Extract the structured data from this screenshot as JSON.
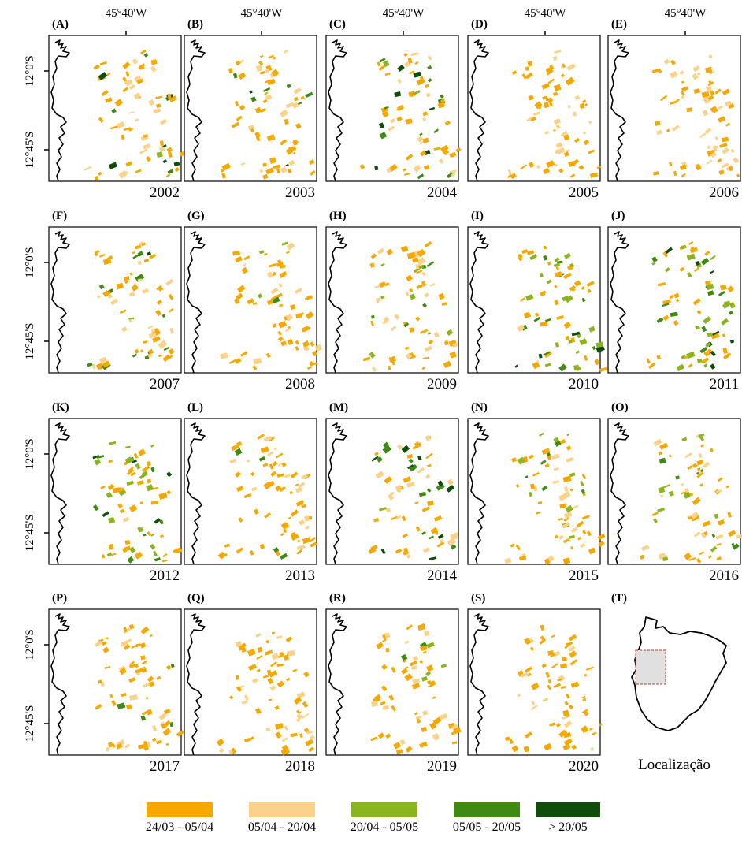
{
  "x_axis_label": "45°40'W",
  "y_axis_labels": [
    "12°0'S",
    "12°45'S"
  ],
  "colors": {
    "c1": "#f5a800",
    "c2": "#fcd28a",
    "c3": "#8bb51e",
    "c4": "#3f8a13",
    "c5": "#0f4d0a"
  },
  "panels": [
    {
      "label": "(A)",
      "year": "2002",
      "dominant": [
        "c1",
        "c2",
        "c4",
        "c5",
        "c3"
      ]
    },
    {
      "label": "(B)",
      "year": "2003",
      "dominant": [
        "c1",
        "c2",
        "c4",
        "c5",
        "c3"
      ]
    },
    {
      "label": "(C)",
      "year": "2004",
      "dominant": [
        "c1",
        "c2",
        "c4",
        "c5",
        "c3"
      ]
    },
    {
      "label": "(D)",
      "year": "2005",
      "dominant": [
        "c1",
        "c2",
        "c1",
        "c2",
        "c1"
      ]
    },
    {
      "label": "(E)",
      "year": "2006",
      "dominant": [
        "c1",
        "c2",
        "c2",
        "c1",
        "c2"
      ]
    },
    {
      "label": "(F)",
      "year": "2007",
      "dominant": [
        "c1",
        "c2",
        "c4",
        "c5",
        "c3"
      ]
    },
    {
      "label": "(G)",
      "year": "2008",
      "dominant": [
        "c1",
        "c2",
        "c1",
        "c3",
        "c4"
      ]
    },
    {
      "label": "(H)",
      "year": "2009",
      "dominant": [
        "c1",
        "c2",
        "c3",
        "c4",
        "c5"
      ]
    },
    {
      "label": "(I)",
      "year": "2010",
      "dominant": [
        "c1",
        "c3",
        "c4",
        "c5",
        "c2"
      ]
    },
    {
      "label": "(J)",
      "year": "2011",
      "dominant": [
        "c1",
        "c3",
        "c4",
        "c5",
        "c2"
      ]
    },
    {
      "label": "(K)",
      "year": "2012",
      "dominant": [
        "c1",
        "c3",
        "c4",
        "c5",
        "c2"
      ]
    },
    {
      "label": "(L)",
      "year": "2013",
      "dominant": [
        "c1",
        "c2",
        "c1",
        "c4",
        "c1"
      ]
    },
    {
      "label": "(M)",
      "year": "2014",
      "dominant": [
        "c1",
        "c2",
        "c4",
        "c5",
        "c3"
      ]
    },
    {
      "label": "(N)",
      "year": "2015",
      "dominant": [
        "c1",
        "c2",
        "c3",
        "c4",
        "c1"
      ]
    },
    {
      "label": "(O)",
      "year": "2016",
      "dominant": [
        "c1",
        "c2",
        "c3",
        "c4",
        "c1"
      ]
    },
    {
      "label": "(P)",
      "year": "2017",
      "dominant": [
        "c1",
        "c2",
        "c1",
        "c4",
        "c2"
      ]
    },
    {
      "label": "(Q)",
      "year": "2018",
      "dominant": [
        "c1",
        "c2",
        "c1",
        "c2",
        "c1"
      ]
    },
    {
      "label": "(R)",
      "year": "2019",
      "dominant": [
        "c1",
        "c2",
        "c1",
        "c3",
        "c4"
      ]
    },
    {
      "label": "(S)",
      "year": "2020",
      "dominant": [
        "c1",
        "c1",
        "c2",
        "c1",
        "c1"
      ]
    }
  ],
  "location_panel": {
    "label": "(T)",
    "caption": "Localização"
  },
  "legend": [
    {
      "label": "24/03 - 05/04",
      "color": "#f5a800"
    },
    {
      "label": "05/04 - 20/04",
      "color": "#fcd28a"
    },
    {
      "label": "20/04 - 05/05",
      "color": "#8bb51e"
    },
    {
      "label": "05/05 - 20/05",
      "color": "#3f8a13"
    },
    {
      "label": "> 20/05",
      "color": "#0f4d0a"
    }
  ]
}
